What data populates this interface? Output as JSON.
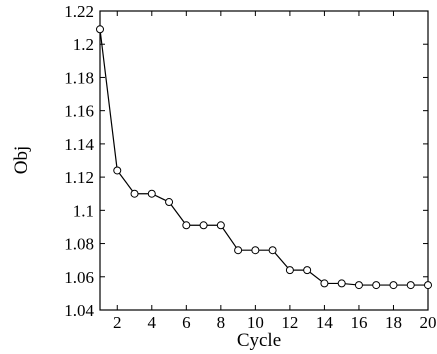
{
  "chart_data": {
    "type": "line",
    "title": "",
    "xlabel": "Cycle",
    "ylabel": "Obj",
    "xlim": [
      1,
      20
    ],
    "ylim": [
      1.04,
      1.22
    ],
    "x_ticks": [
      2,
      4,
      6,
      8,
      10,
      12,
      14,
      16,
      18,
      20
    ],
    "x_tick_labels": [
      "2",
      "4",
      "6",
      "8",
      "10",
      "12",
      "14",
      "16",
      "18",
      "20"
    ],
    "y_ticks": [
      1.04,
      1.06,
      1.08,
      1.1,
      1.12,
      1.14,
      1.16,
      1.18,
      1.2,
      1.22
    ],
    "y_tick_labels": [
      "1.04",
      "1.06",
      "1.08",
      "1.1",
      "1.12",
      "1.14",
      "1.16",
      "1.18",
      "1.2",
      "1.22"
    ],
    "grid": false,
    "marker": "circle",
    "line_color": "#000000",
    "series": [
      {
        "x": [
          1,
          2,
          3,
          4,
          5,
          6,
          7,
          8,
          9,
          10,
          11,
          12,
          13,
          14,
          15,
          16,
          17,
          18,
          19,
          20
        ],
        "values": [
          1.209,
          1.124,
          1.11,
          1.11,
          1.105,
          1.091,
          1.091,
          1.091,
          1.076,
          1.076,
          1.076,
          1.064,
          1.064,
          1.056,
          1.056,
          1.055,
          1.055,
          1.055,
          1.055,
          1.055
        ]
      }
    ]
  }
}
